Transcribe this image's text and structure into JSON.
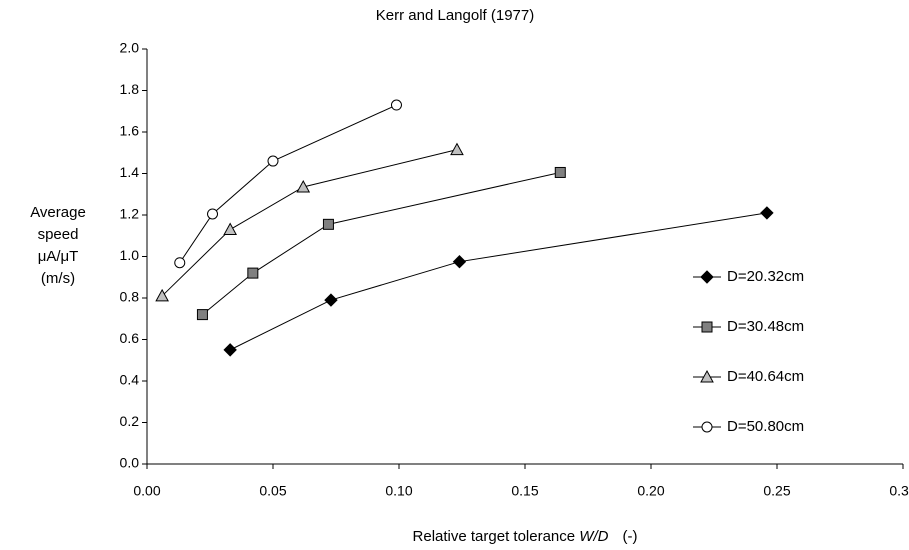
{
  "chart_data": {
    "type": "line",
    "title": "Kerr and Langolf (1977)",
    "xlabel_parts": [
      "Relative target tolerance",
      "W/D",
      "(-)"
    ],
    "ylabel_lines": [
      "Average",
      "speed",
      "μA/μT",
      "(m/s)"
    ],
    "xlim": [
      0,
      0.3
    ],
    "xticks": [
      {
        "value": 0,
        "label": "0.00"
      },
      {
        "value": 0.05,
        "label": "0.05"
      },
      {
        "value": 0.1,
        "label": "0.10"
      },
      {
        "value": 0.15,
        "label": "0.15"
      },
      {
        "value": 0.2,
        "label": "0.20"
      },
      {
        "value": 0.25,
        "label": "0.25"
      },
      {
        "value": 0.3,
        "label": "0.30"
      }
    ],
    "ylim": [
      0,
      2
    ],
    "yticks": [
      {
        "value": 0,
        "label": "0.0"
      },
      {
        "value": 0.2,
        "label": "0.2"
      },
      {
        "value": 0.4,
        "label": "0.4"
      },
      {
        "value": 0.6,
        "label": "0.6"
      },
      {
        "value": 0.8,
        "label": "0.8"
      },
      {
        "value": 1,
        "label": "1.0"
      },
      {
        "value": 1.2,
        "label": "1.2"
      },
      {
        "value": 1.4,
        "label": "1.4"
      },
      {
        "value": 1.6,
        "label": "1.6"
      },
      {
        "value": 1.8,
        "label": "1.8"
      },
      {
        "value": 2,
        "label": "2.0"
      }
    ],
    "grid": false,
    "legend": "right",
    "line_color": "#000000",
    "series": [
      {
        "name": "D=20.32cm",
        "marker": "diamond",
        "color": "#000000",
        "x": [
          0.033,
          0.073,
          0.124,
          0.246
        ],
        "values": [
          0.55,
          0.79,
          0.975,
          1.21
        ]
      },
      {
        "name": "D=30.48cm",
        "marker": "square",
        "color": "#808080",
        "x": [
          0.022,
          0.042,
          0.072,
          0.164
        ],
        "values": [
          0.72,
          0.92,
          1.155,
          1.405
        ]
      },
      {
        "name": "D=40.64cm",
        "marker": "triangle",
        "color": "#c0c0c0",
        "x": [
          0.006,
          0.033,
          0.062,
          0.123
        ],
        "values": [
          0.81,
          1.13,
          1.335,
          1.515
        ]
      },
      {
        "name": "D=50.80cm",
        "marker": "circle",
        "color": "#ffffff",
        "x": [
          0.013,
          0.026,
          0.05,
          0.099
        ],
        "values": [
          0.97,
          1.205,
          1.46,
          1.73
        ]
      }
    ]
  }
}
